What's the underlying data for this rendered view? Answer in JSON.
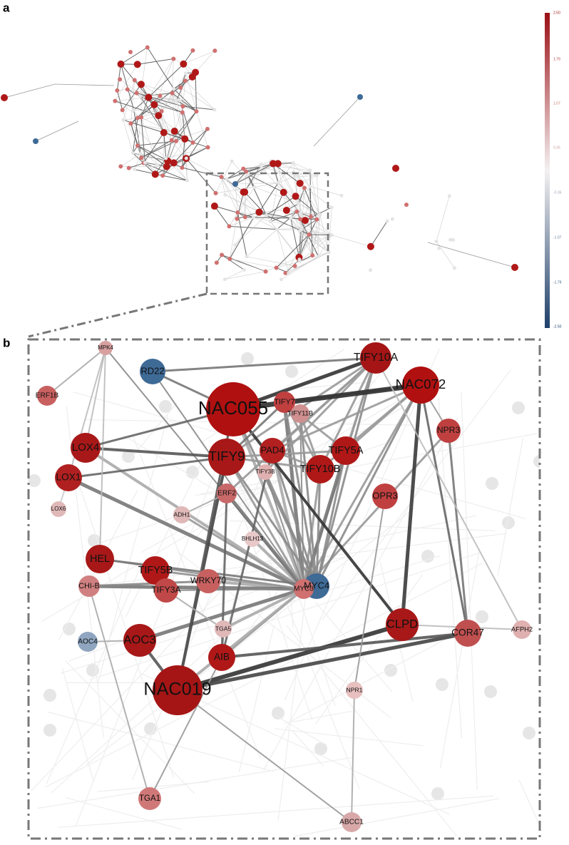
{
  "panels": {
    "a": {
      "label": "a"
    },
    "b": {
      "label": "b"
    }
  },
  "colorbar": {
    "ticks": [
      "2.50",
      "1.79",
      "1.07",
      "0.36",
      "-0.36",
      "-1.07",
      "-1.79",
      "-2.50"
    ]
  },
  "nodes": [
    "TIFY10A",
    "NAC072",
    "RD22",
    "MPK4",
    "ERF1B",
    "NAC055",
    "TIFY7",
    "TIFY11B",
    "NPR3",
    "LOX4",
    "TIFY9",
    "PAD4",
    "TIFY5A",
    "TIFY3B",
    "TIFY10B",
    "LOX1",
    "ERF2",
    "OPR3",
    "LOX6",
    "ADH1",
    "BHLH13",
    "HEL",
    "TIFY5B",
    "WRKY70",
    "CHI-B",
    "TIFY3A",
    "MYC4",
    "MYC3",
    "CLPD",
    "TGA5",
    "COR47",
    "AFPH2",
    "AOC4",
    "AOC3",
    "AIB",
    "NAC019",
    "NPR1",
    "TGA1",
    "ABCC1"
  ]
}
